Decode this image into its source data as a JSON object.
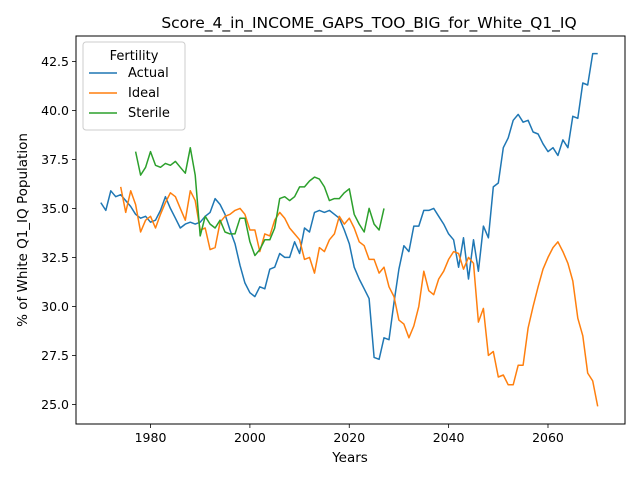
{
  "chart_data": {
    "type": "line",
    "title": "Score_4_in_INCOME_GAPS_TOO_BIG_for_White_Q1_IQ",
    "xlabel": "Years",
    "ylabel": "% of White Q1_IQ Population",
    "xlim": [
      1965,
      2075.5
    ],
    "ylim": [
      24.0,
      43.8
    ],
    "xticks": [
      1980,
      2000,
      2020,
      2040,
      2060
    ],
    "yticks": [
      25.0,
      27.5,
      30.0,
      32.5,
      35.0,
      37.5,
      40.0,
      42.5
    ],
    "grid": false,
    "legend": {
      "title": "Fertility",
      "placement": "top-left"
    },
    "series": [
      {
        "name": "Actual",
        "color": "#1f77b4",
        "x": [
          1970,
          1971,
          1972,
          1973,
          1974,
          1975,
          1976,
          1977,
          1978,
          1979,
          1980,
          1981,
          1982,
          1983,
          1984,
          1985,
          1986,
          1987,
          1988,
          1989,
          1990,
          1991,
          1992,
          1993,
          1994,
          1995,
          1996,
          1997,
          1998,
          1999,
          2000,
          2001,
          2002,
          2003,
          2004,
          2005,
          2006,
          2007,
          2008,
          2009,
          2010,
          2011,
          2012,
          2013,
          2014,
          2015,
          2016,
          2017,
          2018,
          2019,
          2020,
          2021,
          2022,
          2023,
          2024,
          2025,
          2026,
          2027,
          2028,
          2029,
          2030,
          2031,
          2032,
          2033,
          2034,
          2035,
          2036,
          2037,
          2038,
          2039,
          2040,
          2041,
          2042,
          2043,
          2044,
          2045,
          2046,
          2047,
          2048,
          2049,
          2050,
          2051,
          2052,
          2053,
          2054,
          2055,
          2056,
          2057,
          2058,
          2059,
          2060,
          2061,
          2062,
          2063,
          2064,
          2065,
          2066,
          2067,
          2068,
          2069,
          2070
        ],
        "values": [
          35.3,
          34.9,
          35.9,
          35.6,
          35.7,
          35.4,
          35.1,
          34.7,
          34.5,
          34.6,
          34.3,
          34.4,
          34.9,
          35.6,
          35.0,
          34.5,
          34.0,
          34.2,
          34.3,
          34.2,
          34.3,
          34.6,
          34.8,
          35.5,
          35.2,
          34.7,
          33.9,
          33.2,
          32.1,
          31.2,
          30.7,
          30.5,
          31.0,
          30.9,
          31.9,
          32.0,
          32.7,
          32.5,
          32.5,
          33.3,
          32.7,
          34.0,
          33.8,
          34.8,
          34.9,
          34.8,
          34.9,
          34.7,
          34.5,
          33.9,
          33.2,
          32.0,
          31.4,
          30.9,
          30.4,
          27.4,
          27.3,
          28.4,
          28.3,
          30.2,
          31.9,
          33.1,
          32.8,
          34.1,
          34.1,
          34.9,
          34.9,
          35.0,
          34.6,
          34.2,
          33.7,
          33.4,
          32.0,
          33.5,
          31.4,
          33.4,
          31.8,
          34.1,
          33.5,
          36.1,
          36.3,
          38.1,
          38.6,
          39.5,
          39.8,
          39.4,
          39.5,
          38.9,
          38.8,
          38.3,
          37.9,
          38.1,
          37.7,
          38.5,
          38.1,
          39.7,
          39.6,
          41.4,
          41.3,
          42.9,
          42.9
        ],
        "values_end_index": 100
      },
      {
        "name": "Ideal",
        "color": "#ff7f0e",
        "x": [
          1974,
          1975,
          1976,
          1977,
          1978,
          1979,
          1980,
          1981,
          1982,
          1983,
          1984,
          1985,
          1986,
          1987,
          1988,
          1989,
          1990,
          1991,
          1992,
          1993,
          1994,
          1995,
          1996,
          1997,
          1998,
          1999,
          2000,
          2001,
          2002,
          2003,
          2004,
          2005,
          2006,
          2007,
          2008,
          2009,
          2010,
          2011,
          2012,
          2013,
          2014,
          2015,
          2016,
          2017,
          2018,
          2019,
          2020,
          2021,
          2022,
          2023,
          2024,
          2025,
          2026,
          2027,
          2028,
          2029,
          2030,
          2031,
          2032,
          2033,
          2034,
          2035,
          2036,
          2037,
          2038,
          2039,
          2040,
          2041,
          2042,
          2043,
          2044,
          2045,
          2046,
          2047,
          2048,
          2049,
          2050,
          2051,
          2052,
          2053,
          2054,
          2055,
          2056,
          2057,
          2058,
          2059,
          2060,
          2061,
          2062,
          2063,
          2064,
          2065,
          2066,
          2067,
          2068,
          2069,
          2070
        ],
        "values": [
          36.1,
          34.8,
          35.9,
          35.2,
          33.8,
          34.4,
          34.6,
          34.0,
          34.7,
          35.3,
          35.8,
          35.6,
          35.0,
          34.4,
          35.9,
          35.4,
          33.9,
          34.0,
          32.9,
          33.0,
          34.3,
          34.6,
          34.7,
          34.9,
          35.0,
          34.7,
          33.9,
          33.9,
          32.8,
          33.7,
          33.6,
          34.4,
          34.8,
          34.5,
          34.0,
          33.7,
          33.4,
          32.4,
          32.5,
          31.7,
          33.0,
          32.8,
          33.4,
          33.7,
          34.6,
          34.2,
          34.5,
          34.0,
          33.3,
          33.1,
          32.4,
          32.4,
          31.7,
          32.0,
          31.0,
          30.5,
          29.3,
          29.1,
          28.4,
          29.0,
          30.0,
          31.8,
          30.8,
          30.6,
          31.4,
          31.8,
          32.4,
          32.8,
          32.7,
          31.9,
          32.5,
          32.2,
          29.2,
          29.9,
          27.5,
          27.7,
          26.4,
          26.5,
          26.0,
          26.0,
          27.0,
          27.0,
          28.9,
          30.0,
          31.0,
          31.9,
          32.5,
          33.0,
          33.3,
          32.8,
          32.2,
          31.3,
          29.4,
          28.5,
          26.6,
          26.2,
          24.9
        ]
      },
      {
        "name": "Sterile",
        "color": "#2ca02c",
        "x": [
          1977,
          1978,
          1979,
          1980,
          1981,
          1982,
          1983,
          1984,
          1985,
          1986,
          1987,
          1988,
          1989,
          1990,
          1991,
          1992,
          1993,
          1994,
          1995,
          1996,
          1997,
          1998,
          1999,
          2000,
          2001,
          2002,
          2003,
          2004,
          2005,
          2006,
          2007,
          2008,
          2009,
          2010,
          2011,
          2012,
          2013,
          2014,
          2015,
          2016,
          2017,
          2018,
          2019,
          2020,
          2021,
          2022,
          2023,
          2024,
          2025,
          2026,
          2027
        ],
        "values": [
          37.9,
          36.7,
          37.1,
          37.9,
          37.2,
          37.1,
          37.3,
          37.2,
          37.4,
          37.1,
          36.8,
          38.1,
          36.7,
          33.6,
          34.6,
          34.2,
          34.0,
          34.4,
          33.8,
          33.7,
          33.7,
          34.5,
          34.5,
          33.3,
          32.6,
          32.9,
          33.4,
          33.4,
          34.0,
          35.5,
          35.6,
          35.4,
          35.6,
          36.1,
          36.1,
          36.4,
          36.6,
          36.5,
          36.1,
          35.4,
          35.5,
          35.5,
          35.8,
          36.0,
          34.7,
          34.2,
          33.8,
          35.0,
          34.2,
          33.9,
          35.0
        ]
      }
    ]
  }
}
